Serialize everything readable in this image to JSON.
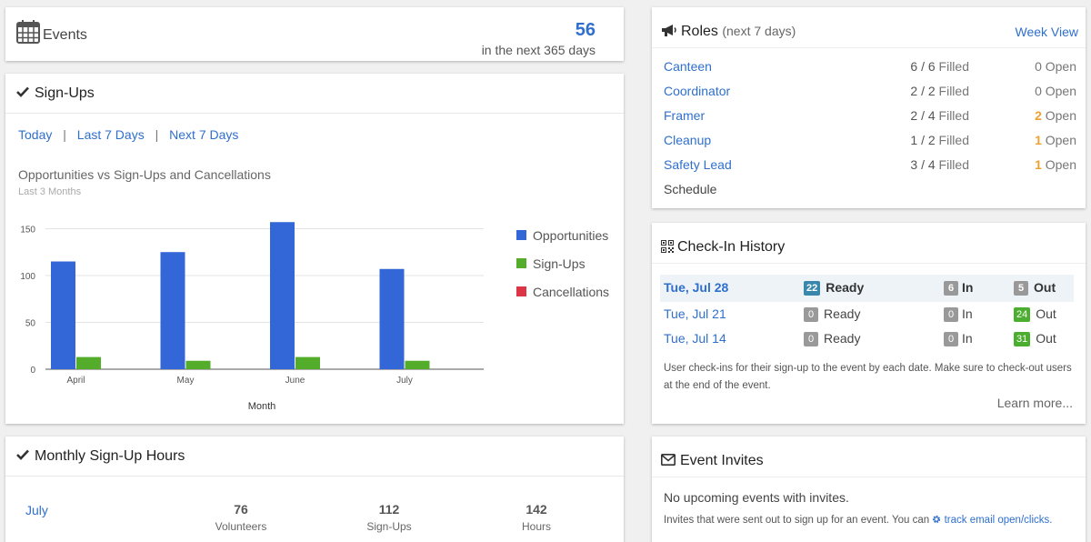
{
  "events": {
    "title": "Events",
    "count": "56",
    "subtitle": "in the next 365 days"
  },
  "signups": {
    "title": "Sign-Ups",
    "filters": [
      "Today",
      "Last 7 Days",
      "Next 7 Days"
    ],
    "separator": "|"
  },
  "chart_data": {
    "type": "bar",
    "title": "Opportunities vs Sign-Ups and Cancellations",
    "subtitle": "Last 3 Months",
    "xlabel": "Month",
    "ylabel": "",
    "categories": [
      "April",
      "May",
      "June",
      "July"
    ],
    "series": [
      {
        "name": "Opportunities",
        "values": [
          115,
          125,
          157,
          107
        ],
        "color": "#3366d6"
      },
      {
        "name": "Sign-Ups",
        "values": [
          13,
          9,
          13,
          9
        ],
        "color": "#53ad2a"
      },
      {
        "name": "Cancellations",
        "values": [
          0,
          0,
          0,
          0
        ],
        "color": "#dc3545"
      }
    ],
    "ylim": [
      0,
      165
    ],
    "yticks": [
      0,
      50,
      100,
      150
    ],
    "grid": true,
    "legend": "right"
  },
  "monthly": {
    "title": "Monthly Sign-Up Hours",
    "month": "July",
    "stats": [
      {
        "value": "76",
        "label": "Volunteers"
      },
      {
        "value": "112",
        "label": "Sign-Ups"
      },
      {
        "value": "142",
        "label": "Hours"
      }
    ]
  },
  "roles": {
    "title": "Roles",
    "subtitle": "(next 7 days)",
    "week_view": "Week View",
    "filled_label": "Filled",
    "open_label": "Open",
    "rows": [
      {
        "name": "Canteen",
        "filled": "6 / 6",
        "open": "0",
        "highlight": false
      },
      {
        "name": "Coordinator",
        "filled": "2 / 2",
        "open": "0",
        "highlight": false
      },
      {
        "name": "Framer",
        "filled": "2 / 4",
        "open": "2",
        "highlight": true
      },
      {
        "name": "Cleanup",
        "filled": "1 / 2",
        "open": "1",
        "highlight": true
      },
      {
        "name": "Safety Lead",
        "filled": "3 / 4",
        "open": "1",
        "highlight": true
      }
    ],
    "schedule": "Schedule"
  },
  "checkin": {
    "title": "Check-In History",
    "ready_label": "Ready",
    "in_label": "In",
    "out_label": "Out",
    "rows": [
      {
        "date": "Tue, Jul 28",
        "ready": "22",
        "in": "6",
        "out": "5",
        "current": true
      },
      {
        "date": "Tue, Jul 21",
        "ready": "0",
        "in": "0",
        "out": "24",
        "current": false
      },
      {
        "date": "Tue, Jul 14",
        "ready": "0",
        "in": "0",
        "out": "31",
        "current": false
      }
    ],
    "note": "User check-ins for their sign-up to the event by each date. Make sure to check-out users at the end of the event.",
    "learn_more": "Learn more..."
  },
  "invites": {
    "title": "Event Invites",
    "empty": "No upcoming events with invites.",
    "note": "Invites that were sent out to sign up for an event. You can",
    "track_link": "track email open/clicks."
  },
  "colors": {
    "link": "#2f6fce",
    "orange": "#f0a030",
    "badge_blue": "#3a87ad",
    "badge_green": "#4cae2e",
    "badge_gray": "#999999"
  }
}
